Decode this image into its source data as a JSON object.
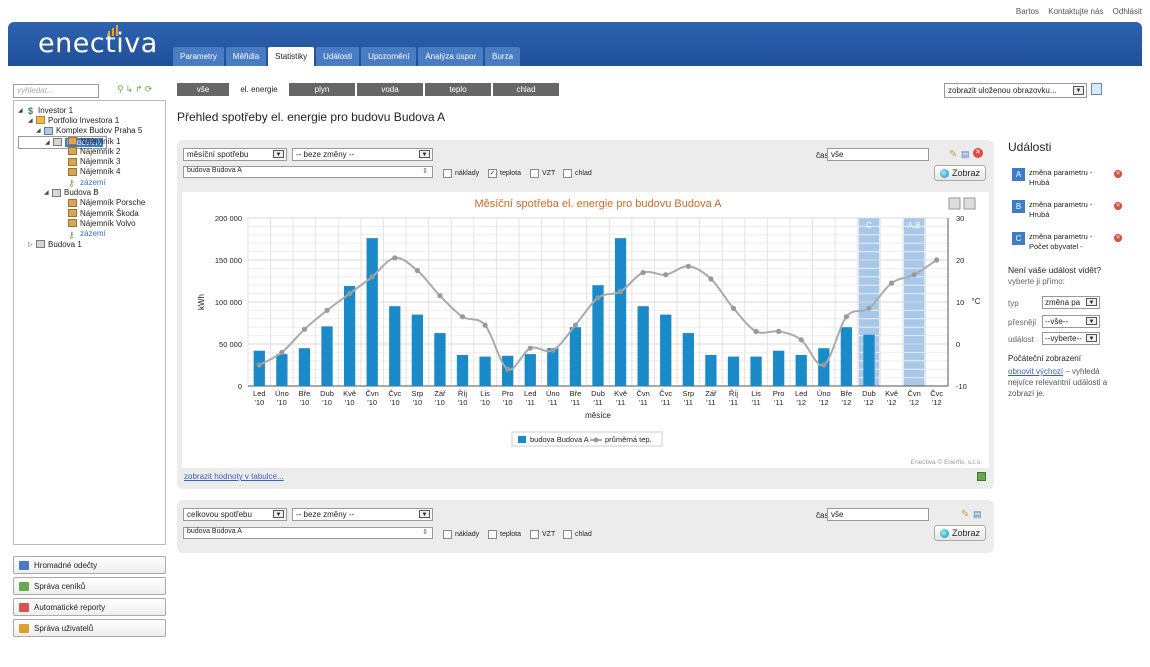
{
  "top_links": [
    "Bartos",
    "Kontaktujte nás",
    "Odhlásit"
  ],
  "logo": "enectiva",
  "tabs": [
    {
      "label": "Parametry",
      "active": false
    },
    {
      "label": "Měřidla",
      "active": false
    },
    {
      "label": "Statistiky",
      "active": true
    },
    {
      "label": "Události",
      "active": false
    },
    {
      "label": "Upozornění",
      "active": false
    },
    {
      "label": "Analýza úspor",
      "active": false
    },
    {
      "label": "Burza",
      "active": false
    }
  ],
  "search": {
    "placeholder": "vyhledat..."
  },
  "tree": [
    {
      "label": "Investor 1",
      "level": 0,
      "icon": "dollar-icon",
      "toggle": "▲"
    },
    {
      "label": "Portfolio Investora 1",
      "level": 1,
      "icon": "portfolio-icon",
      "toggle": "▲"
    },
    {
      "label": "Komplex Budov Praha 5",
      "level": 2,
      "icon": "complex-icon",
      "toggle": "▲"
    },
    {
      "label": "Budova A",
      "level": 3,
      "icon": "building-icon",
      "toggle": "▲",
      "selected": true
    },
    {
      "label": "Nájemník 1",
      "level": 4,
      "icon": "tenant-icon"
    },
    {
      "label": "Nájemník 2",
      "level": 4,
      "icon": "tenant-icon"
    },
    {
      "label": "Nájemník 3",
      "level": 4,
      "icon": "tenant-icon"
    },
    {
      "label": "Nájemník 4",
      "level": 4,
      "icon": "tenant-icon"
    },
    {
      "label": "zázemí",
      "level": 4,
      "icon": "key-icon",
      "link": true
    },
    {
      "label": "Budova B",
      "level": 3,
      "icon": "building-icon",
      "toggle": "▲"
    },
    {
      "label": "Nájemník Porsche",
      "level": 4,
      "icon": "tenant-icon"
    },
    {
      "label": "Nájemník Škoda",
      "level": 4,
      "icon": "tenant-icon"
    },
    {
      "label": "Nájemník Volvo",
      "level": 4,
      "icon": "tenant-icon"
    },
    {
      "label": "zázemí",
      "level": 4,
      "icon": "key-icon",
      "link": true
    },
    {
      "label": "Budova 1",
      "level": 1,
      "icon": "building-icon",
      "toggle": "▷"
    }
  ],
  "sidebar_buttons": [
    {
      "label": "Hromadné odečty",
      "icon": "meter-icon",
      "color": "#4a7cc4"
    },
    {
      "label": "Správa ceníků",
      "icon": "tag-icon",
      "color": "#6aa84f"
    },
    {
      "label": "Automatické reporty",
      "icon": "report-icon",
      "color": "#d9534f"
    },
    {
      "label": "Správa uživatelů",
      "icon": "users-icon",
      "color": "#e0a030"
    }
  ],
  "filter_tabs": [
    {
      "label": "vše",
      "active": false
    },
    {
      "label": "el. energie",
      "active": true
    },
    {
      "label": "plyn",
      "active": false
    },
    {
      "label": "voda",
      "active": false
    },
    {
      "label": "teplo",
      "active": false
    },
    {
      "label": "chlad",
      "active": false
    }
  ],
  "saved_view": "zobrazit uloženou obrazovku...",
  "page_title": "Přehled spotřeby el. energie pro budovu Budova A",
  "panel1": {
    "type_select": "měsíční spotřebu",
    "change_select": "-- beze změny --",
    "object_select": "budova Budova A",
    "time_label": "čas",
    "time_value": "vše",
    "checkboxes": [
      {
        "label": "náklady",
        "checked": false
      },
      {
        "label": "teplota",
        "checked": true
      },
      {
        "label": "VZT",
        "checked": false
      },
      {
        "label": "chlad",
        "checked": false
      }
    ],
    "show_button": "Zobraz",
    "table_link": "zobrazit hodnoty v tabulce..."
  },
  "panel2": {
    "type_select": "celkovou spotřebu",
    "change_select": "-- beze změny --",
    "object_select": "budova Budova A",
    "time_label": "čas",
    "time_value": "vše",
    "checkboxes": [
      {
        "label": "náklady",
        "checked": false
      },
      {
        "label": "teplota",
        "checked": false
      },
      {
        "label": "VZT",
        "checked": false
      },
      {
        "label": "chlad",
        "checked": false
      }
    ],
    "show_button": "Zobraz"
  },
  "chart_data": {
    "type": "bar",
    "title": "Měsíční spotřeba el. energie pro budovu Budova A",
    "xlabel": "měsíce",
    "ylabel": "kWh",
    "y2label": "°C",
    "ylim": [
      0,
      200000
    ],
    "y2lim": [
      -10,
      30
    ],
    "yticks": [
      "0",
      "50 000",
      "100 000",
      "150 000",
      "200 000"
    ],
    "y2ticks": [
      "-10",
      "0",
      "10",
      "20",
      "30"
    ],
    "grid": true,
    "legend_position": "bottom",
    "credit": "Enectiva © Enerfis, s.r.o.",
    "categories": [
      [
        "Led",
        "'10"
      ],
      [
        "Úno",
        "'10"
      ],
      [
        "Bře",
        "'10"
      ],
      [
        "Dub",
        "'10"
      ],
      [
        "Kvě",
        "'10"
      ],
      [
        "Čvn",
        "'10"
      ],
      [
        "Čvc",
        "'10"
      ],
      [
        "Srp",
        "'10"
      ],
      [
        "Zář",
        "'10"
      ],
      [
        "Říj",
        "'10"
      ],
      [
        "Lis",
        "'10"
      ],
      [
        "Pro",
        "'10"
      ],
      [
        "Led",
        "'11"
      ],
      [
        "Úno",
        "'11"
      ],
      [
        "Bře",
        "'11"
      ],
      [
        "Dub",
        "'11"
      ],
      [
        "Kvě",
        "'11"
      ],
      [
        "Čvn",
        "'11"
      ],
      [
        "Čvc",
        "'11"
      ],
      [
        "Srp",
        "'11"
      ],
      [
        "Zář",
        "'11"
      ],
      [
        "Říj",
        "'11"
      ],
      [
        "Lis",
        "'11"
      ],
      [
        "Pro",
        "'11"
      ],
      [
        "Led",
        "'12"
      ],
      [
        "Úno",
        "'12"
      ],
      [
        "Bře",
        "'12"
      ],
      [
        "Dub",
        "'12"
      ],
      [
        "Kvě",
        "'12"
      ],
      [
        "Čvn",
        "'12"
      ],
      [
        "Čvc",
        "'12"
      ]
    ],
    "series": [
      {
        "name": "budova Budova A",
        "type": "bar",
        "color": "#1a8ac9",
        "values": [
          42000,
          38000,
          45000,
          71000,
          119000,
          176000,
          95000,
          85000,
          63000,
          37000,
          35000,
          36000,
          38000,
          45000,
          70000,
          120000,
          176000,
          95000,
          85000,
          63000,
          37000,
          35000,
          35000,
          42000,
          37000,
          45000,
          70000,
          61000,
          null,
          null,
          null
        ]
      },
      {
        "name": "průměrná tep.",
        "type": "line",
        "axis": "right",
        "color": "#aaaaaa",
        "values": [
          -5,
          -2,
          3.5,
          8,
          12,
          16,
          20.5,
          17.5,
          11.5,
          6.5,
          4.5,
          -6,
          -1,
          -1.5,
          4.5,
          11,
          12.5,
          17,
          16.5,
          18.5,
          15.5,
          8.5,
          3,
          3,
          1,
          -5,
          6.5,
          8.5,
          14.5,
          16.5,
          20
        ]
      }
    ],
    "event_bands": [
      {
        "label": "C",
        "category": 27
      },
      {
        "label": "A,B",
        "category": 29
      }
    ]
  },
  "events": {
    "title": "Události",
    "items": [
      {
        "badge": "A",
        "text": "změna parametru - Hrubá"
      },
      {
        "badge": "B",
        "text": "změna parametru - Hrubá"
      },
      {
        "badge": "C",
        "text": "změna parametru - Počet obyvatel -"
      }
    ],
    "missing_title": "Není vaše událost vidět?",
    "missing_sub": "vyberte ji přímo:",
    "filters": [
      {
        "label": "typ",
        "value": "změna pa"
      },
      {
        "label": "přesněji",
        "value": "--vše--"
      },
      {
        "label": "událost",
        "value": "--vyberte--"
      }
    ],
    "initial_title": "Počáteční zobrazení",
    "reset_link": "obnovit výchozí",
    "reset_text": "– vyhledá nejvíce relevantní události a zobrazí je."
  }
}
